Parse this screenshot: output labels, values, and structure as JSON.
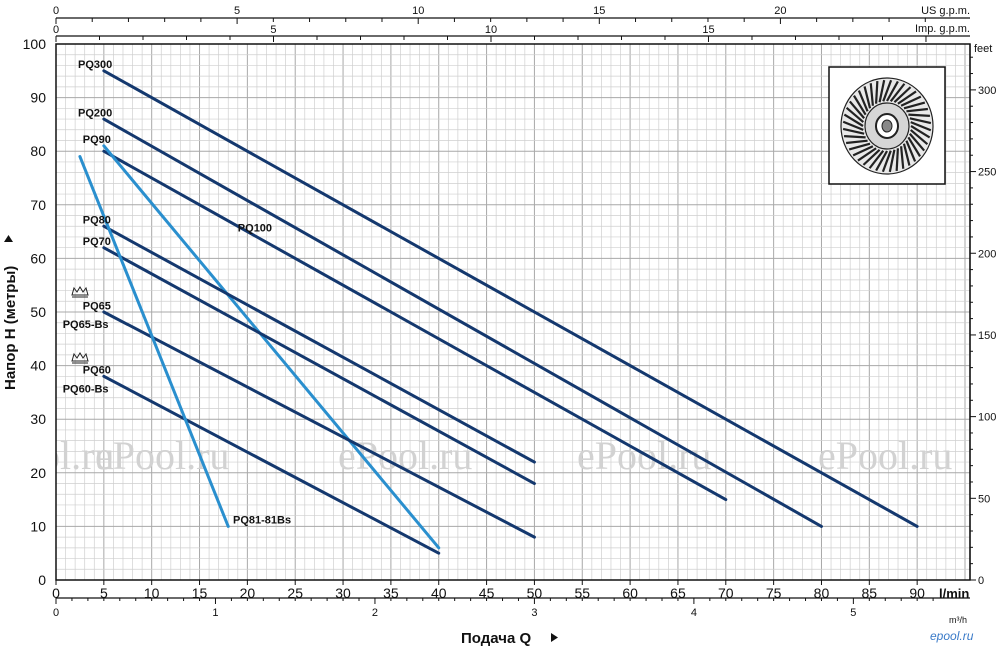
{
  "chart_data": {
    "type": "line",
    "xlabel": "Подача Q",
    "ylabel": "Напор H (метры)",
    "x_unit": "l/min",
    "xlim": [
      0,
      95
    ],
    "ylim": [
      0,
      100
    ],
    "x_ticks": [
      0,
      5,
      10,
      15,
      20,
      25,
      30,
      35,
      40,
      45,
      50,
      55,
      60,
      65,
      70,
      75,
      80,
      85,
      90
    ],
    "y_ticks": [
      0,
      10,
      20,
      30,
      40,
      50,
      60,
      70,
      80,
      90,
      100
    ],
    "grid": true,
    "secondary_axes": {
      "us_gpm": {
        "label": "US g.p.m.",
        "ticks": [
          0,
          5,
          10,
          15,
          20
        ]
      },
      "imp_gpm": {
        "label": "Imp. g.p.m.",
        "ticks": [
          0,
          5,
          10,
          15
        ]
      },
      "m3h": {
        "label": "m³/h",
        "ticks": [
          0,
          1,
          2,
          3,
          4,
          5
        ]
      },
      "feet": {
        "label": "feet",
        "ticks": [
          0,
          50,
          100,
          150,
          200,
          250,
          300
        ]
      }
    },
    "series": [
      {
        "name": "PQ300",
        "color": "#14386e",
        "points": [
          [
            5,
            95
          ],
          [
            90,
            10
          ]
        ]
      },
      {
        "name": "PQ200",
        "color": "#14386e",
        "points": [
          [
            5,
            86
          ],
          [
            80,
            10
          ]
        ]
      },
      {
        "name": "PQ100",
        "color": "#14386e",
        "points": [
          [
            5,
            80
          ],
          [
            70,
            15
          ]
        ]
      },
      {
        "name": "PQ90",
        "color": "#2a8fce",
        "points": [
          [
            5,
            81
          ],
          [
            40,
            6
          ]
        ]
      },
      {
        "name": "PQ80",
        "color": "#14386e",
        "points": [
          [
            5,
            66
          ],
          [
            50,
            22
          ]
        ]
      },
      {
        "name": "PQ70",
        "color": "#14386e",
        "points": [
          [
            5,
            62
          ],
          [
            50,
            18
          ]
        ]
      },
      {
        "name": "PQ65 / PQ65-Bs",
        "color": "#14386e",
        "points": [
          [
            5,
            50
          ],
          [
            50,
            8
          ]
        ]
      },
      {
        "name": "PQ60 / PQ60-Bs",
        "color": "#14386e",
        "points": [
          [
            5,
            38
          ],
          [
            40,
            5
          ]
        ]
      },
      {
        "name": "PQ81-81Bs",
        "color": "#2a8fce",
        "points": [
          [
            2.5,
            79
          ],
          [
            18,
            10
          ]
        ]
      }
    ],
    "labels": [
      {
        "text": "PQ300",
        "x": 2.3,
        "y": 95.5
      },
      {
        "text": "PQ200",
        "x": 2.3,
        "y": 86.5
      },
      {
        "text": "PQ90",
        "x": 2.8,
        "y": 81.5
      },
      {
        "text": "PQ100",
        "x": 19,
        "y": 65
      },
      {
        "text": "PQ80",
        "x": 2.8,
        "y": 66.5
      },
      {
        "text": "PQ70",
        "x": 2.8,
        "y": 62.5
      },
      {
        "text": "PQ65",
        "x": 2.8,
        "y": 50.5
      },
      {
        "text": "PQ65-Bs",
        "x": 0.7,
        "y": 47
      },
      {
        "text": "PQ60",
        "x": 2.8,
        "y": 38.5
      },
      {
        "text": "PQ60-Bs",
        "x": 0.7,
        "y": 35
      },
      {
        "text": "PQ81-81Bs",
        "x": 18.5,
        "y": 10.5
      }
    ]
  },
  "watermarks": [
    "ePool.ru",
    "ePool.ru",
    "ePool.ru",
    "ePool.ru",
    "ePool.ru"
  ],
  "corner_watermark": "epool.ru"
}
